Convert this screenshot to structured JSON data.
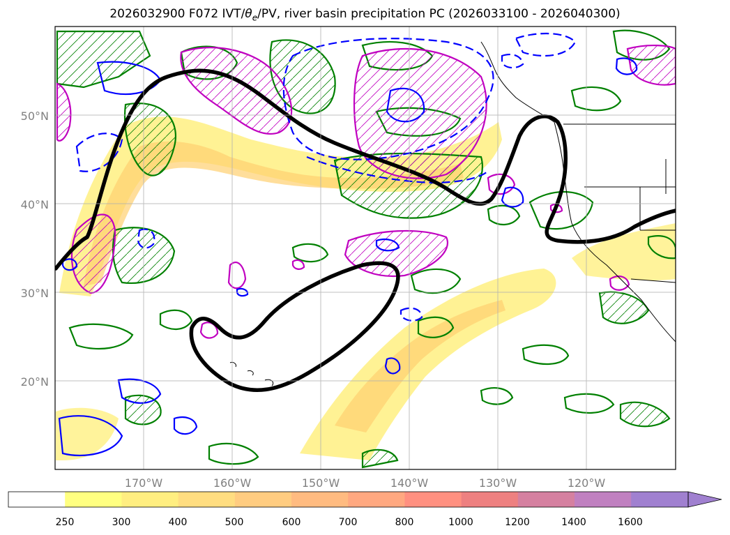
{
  "title": {
    "prefix": "2026032900 F072 IVT/",
    "theta": "θ",
    "theta_sub": "e",
    "suffix": "/PV, river basin precipitation PC (2026033100 - 2026040300)"
  },
  "map": {
    "lat_labels": [
      "20°N",
      "30°N",
      "40°N",
      "50°N"
    ],
    "lon_labels": [
      "170°W",
      "160°W",
      "150°W",
      "140°W",
      "130°W",
      "120°W"
    ],
    "extent": {
      "lon_min": -180,
      "lon_max": -110,
      "lat_min": 10,
      "lat_max": 60
    }
  },
  "colorbar": {
    "levels": [
      "250",
      "300",
      "400",
      "500",
      "600",
      "700",
      "800",
      "1000",
      "1200",
      "1400",
      "1600"
    ],
    "colors": [
      "#ffffff",
      "#ffff80",
      "#ffee80",
      "#ffdd80",
      "#ffcc80",
      "#ffbb80",
      "#ffa880",
      "#ff9080",
      "#ee8080",
      "#d580a0",
      "#c080c0",
      "#a080d0"
    ]
  },
  "colors": {
    "ivt_fill": "#ffee70",
    "ivt_fill_strong": "#ffd070",
    "green_contour": "#008000",
    "blue_contour": "#0000ff",
    "magenta_contour": "#c000c0",
    "black_contour": "#000000",
    "grid": "#b0b0b0"
  }
}
